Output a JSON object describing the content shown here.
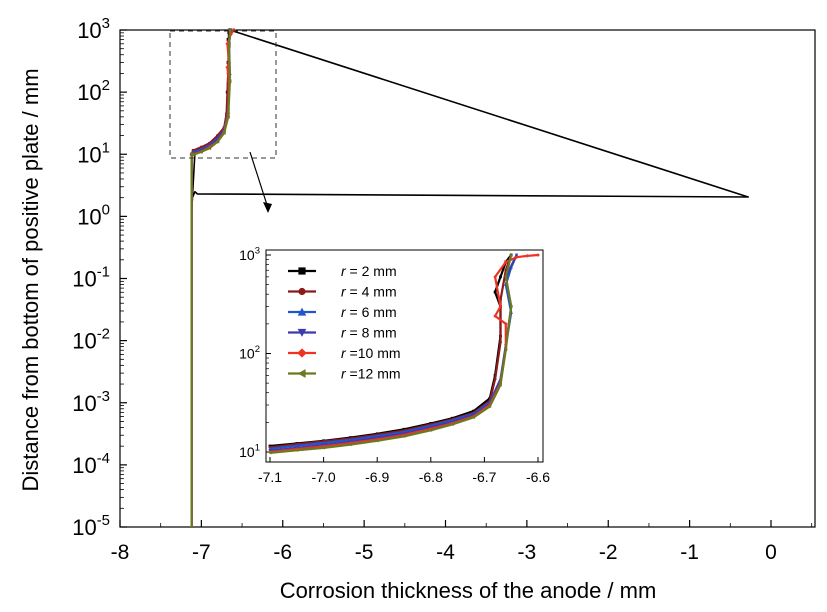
{
  "chart_data": [
    {
      "type": "line",
      "xlabel": "Corrosion thickness of the anode / mm",
      "ylabel": "Distance from bottom of positive plate / mm",
      "xlim": [
        -8,
        0.5
      ],
      "ylim": [
        1e-05,
        1000
      ],
      "yscale": "log",
      "xticks": [
        "-8",
        "-7",
        "-6",
        "-5",
        "-4",
        "-3",
        "-2",
        "-1",
        "0"
      ],
      "yticks": [
        {
          "base": "10",
          "exp": "3"
        },
        {
          "base": "10",
          "exp": "2"
        },
        {
          "base": "10",
          "exp": "1"
        },
        {
          "base": "10",
          "exp": "0"
        },
        {
          "base": "10",
          "exp": "-1"
        },
        {
          "base": "10",
          "exp": "-2"
        },
        {
          "base": "10",
          "exp": "-3"
        },
        {
          "base": "10",
          "exp": "-4"
        },
        {
          "base": "10",
          "exp": "-5"
        }
      ],
      "series": [
        {
          "name": "r = 2 mm",
          "color": "#000000",
          "marker": "square",
          "x": [
            -7.12,
            -7.12,
            -7.11,
            -7.08,
            -7.0,
            -6.9,
            -6.8,
            -6.72,
            -6.69,
            -6.68,
            -6.67,
            -6.67,
            -6.66,
            -6.65,
            -0.28,
            -7.05,
            -7.08,
            -7.11,
            -7.11
          ],
          "y": [
            1e-05,
            1,
            2.0,
            10.5,
            12,
            14,
            18,
            25,
            40,
            100,
            300,
            700,
            900,
            1000,
            2.05,
            2.3,
            2.5,
            2.0,
            1.8
          ]
        },
        {
          "name": "r = 4 mm",
          "color": "#8b1a1a",
          "marker": "circle",
          "x": [
            -7.12,
            -7.12,
            -7.1,
            -7.0,
            -6.9,
            -6.8,
            -6.72,
            -6.69,
            -6.67,
            -6.66,
            -6.65
          ],
          "y": [
            1e-05,
            10,
            11.5,
            13,
            15,
            20,
            27,
            45,
            200,
            600,
            1000
          ]
        },
        {
          "name": "r = 6 mm",
          "color": "#2255cc",
          "marker": "triangle-up",
          "x": [
            -7.12,
            -7.12,
            -7.1,
            -7.0,
            -6.9,
            -6.8,
            -6.72,
            -6.67,
            -6.65,
            -6.66,
            -6.64
          ],
          "y": [
            1e-05,
            10,
            10.8,
            12,
            14,
            18,
            25,
            50,
            200,
            600,
            1000
          ]
        },
        {
          "name": "r = 8 mm",
          "color": "#3b3bb0",
          "marker": "triangle-down",
          "x": [
            -7.12,
            -7.12,
            -7.1,
            -7.0,
            -6.9,
            -6.8,
            -6.72,
            -6.67,
            -6.66,
            -6.66,
            -6.64
          ],
          "y": [
            1e-05,
            10,
            10.3,
            11.5,
            13.5,
            17,
            24,
            50,
            180,
            600,
            1000
          ]
        },
        {
          "name": "r =10 mm",
          "color": "#ee3322",
          "marker": "diamond",
          "x": [
            -7.12,
            -7.12,
            -7.1,
            -7.0,
            -6.9,
            -6.8,
            -6.72,
            -6.67,
            -6.66,
            -6.68,
            -6.66,
            -6.68,
            -6.64,
            -6.6
          ],
          "y": [
            1e-05,
            10,
            10,
            11,
            13,
            16,
            23,
            45,
            150,
            250,
            300,
            600,
            850,
            1000
          ]
        },
        {
          "name": "r =12 mm",
          "color": "#6b7a1f",
          "marker": "triangle-left",
          "x": [
            -7.12,
            -7.12,
            -7.1,
            -7.0,
            -6.9,
            -6.8,
            -6.72,
            -6.67,
            -6.65,
            -6.66,
            -6.65
          ],
          "y": [
            1e-05,
            10,
            9.8,
            11,
            12.5,
            16,
            22,
            40,
            150,
            550,
            1000
          ]
        }
      ]
    },
    {
      "type": "line",
      "inset": true,
      "xlim": [
        -7.1,
        -6.6
      ],
      "ylim": [
        10,
        1000
      ],
      "yscale": "log",
      "xticks": [
        "-7.1",
        "-7.0",
        "-6.9",
        "-6.8",
        "-6.7",
        "-6.6"
      ],
      "yticks": [
        {
          "base": "10",
          "exp": "3"
        },
        {
          "base": "10",
          "exp": "2"
        },
        {
          "base": "10",
          "exp": "1"
        }
      ],
      "legend_position": "upper-left",
      "legend": [
        {
          "r": "r",
          "rest": " = 2 mm",
          "color": "#000000",
          "marker": "square"
        },
        {
          "r": "r",
          "rest": " = 4 mm",
          "color": "#8b1a1a",
          "marker": "circle"
        },
        {
          "r": "r",
          "rest": " = 6 mm",
          "color": "#2255cc",
          "marker": "triangle-up"
        },
        {
          "r": "r",
          "rest": " = 8 mm",
          "color": "#3b3bb0",
          "marker": "triangle-down"
        },
        {
          "r": "r",
          "rest": " =10 mm",
          "color": "#ee3322",
          "marker": "diamond"
        },
        {
          "r": "r",
          "rest": " =12 mm",
          "color": "#6b7a1f",
          "marker": "triangle-left"
        }
      ],
      "series": [
        {
          "color": "#000000",
          "x": [
            -7.1,
            -7.05,
            -7.0,
            -6.95,
            -6.9,
            -6.85,
            -6.8,
            -6.76,
            -6.72,
            -6.69,
            -6.68,
            -6.67,
            -6.67,
            -6.68,
            -6.67,
            -6.66,
            -6.65
          ],
          "y": [
            11.5,
            12.2,
            13,
            14,
            15.3,
            17,
            19.5,
            22,
            26,
            35,
            60,
            150,
            300,
            420,
            600,
            850,
            1000
          ]
        },
        {
          "color": "#8b1a1a",
          "x": [
            -7.1,
            -7.05,
            -7.0,
            -6.95,
            -6.9,
            -6.85,
            -6.8,
            -6.76,
            -6.72,
            -6.69,
            -6.68,
            -6.67,
            -6.67,
            -6.66,
            -6.65
          ],
          "y": [
            11.2,
            12,
            12.8,
            13.7,
            15,
            16.5,
            19,
            21.5,
            25,
            33,
            55,
            130,
            350,
            700,
            1000
          ]
        },
        {
          "color": "#2255cc",
          "x": [
            -7.1,
            -7.05,
            -7.0,
            -6.95,
            -6.9,
            -6.85,
            -6.8,
            -6.76,
            -6.72,
            -6.69,
            -6.67,
            -6.66,
            -6.65,
            -6.66,
            -6.65,
            -6.64
          ],
          "y": [
            10.8,
            11.6,
            12.4,
            13.3,
            14.5,
            16,
            18.5,
            21,
            24.5,
            32,
            55,
            120,
            260,
            500,
            750,
            1000
          ]
        },
        {
          "color": "#3b3bb0",
          "x": [
            -7.1,
            -7.05,
            -7.0,
            -6.95,
            -6.9,
            -6.85,
            -6.8,
            -6.76,
            -6.72,
            -6.69,
            -6.67,
            -6.66,
            -6.65,
            -6.66,
            -6.64
          ],
          "y": [
            10.3,
            11,
            11.8,
            12.7,
            13.9,
            15.4,
            17.8,
            20.2,
            24,
            31,
            52,
            120,
            300,
            600,
            1000
          ]
        },
        {
          "color": "#ee3322",
          "x": [
            -7.1,
            -7.05,
            -7.0,
            -6.95,
            -6.9,
            -6.85,
            -6.8,
            -6.76,
            -6.72,
            -6.69,
            -6.67,
            -6.66,
            -6.66,
            -6.68,
            -6.67,
            -6.68,
            -6.66,
            -6.64,
            -6.62,
            -6.6
          ],
          "y": [
            10,
            10.7,
            11.4,
            12.3,
            13.4,
            14.9,
            17.2,
            19.5,
            23,
            30,
            50,
            110,
            200,
            240,
            300,
            600,
            850,
            950,
            980,
            1000
          ]
        },
        {
          "color": "#6b7a1f",
          "x": [
            -7.1,
            -7.05,
            -7.0,
            -6.95,
            -6.9,
            -6.85,
            -6.8,
            -6.76,
            -6.72,
            -6.69,
            -6.67,
            -6.66,
            -6.65,
            -6.66,
            -6.65
          ],
          "y": [
            9.8,
            10.4,
            11,
            11.9,
            13,
            14.4,
            16.6,
            19,
            22.5,
            29,
            48,
            110,
            300,
            600,
            1000
          ]
        }
      ]
    }
  ]
}
